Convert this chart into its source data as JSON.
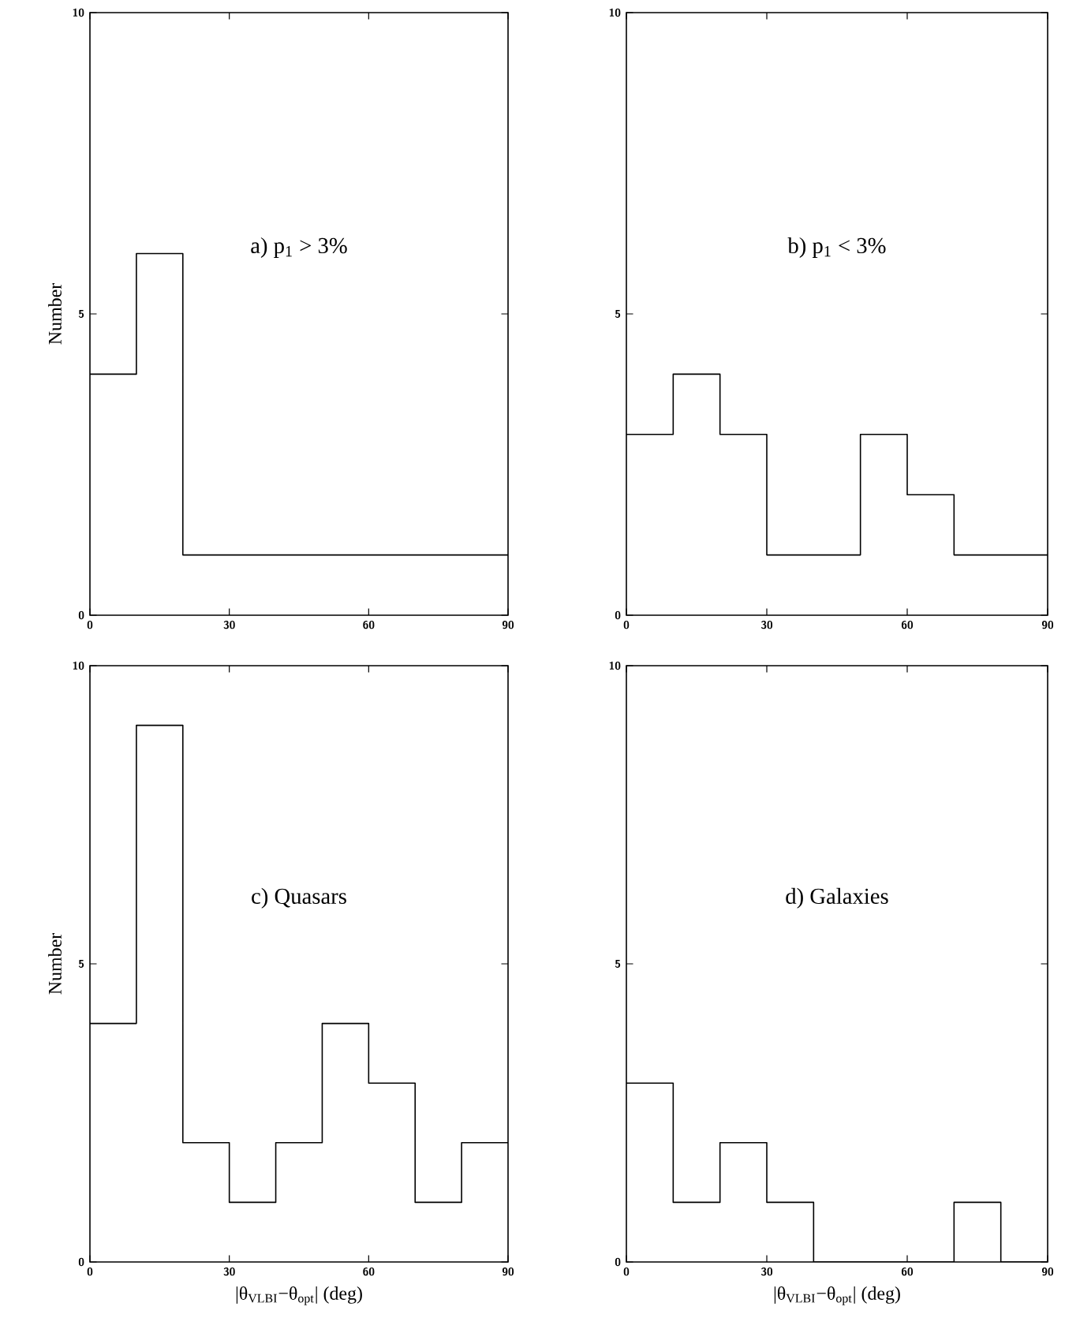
{
  "chart_data": [
    {
      "type": "histogram",
      "bins": [
        0,
        10,
        20,
        30,
        40,
        50,
        60,
        70,
        80,
        90
      ],
      "values": [
        4,
        6,
        1,
        1,
        1,
        1,
        1,
        1,
        1
      ],
      "color": "#000000",
      "xlim": [
        0,
        90
      ],
      "ylim": [
        0,
        10
      ],
      "xticks": [
        0,
        30,
        60,
        90
      ],
      "yticks": [
        0,
        5,
        10
      ],
      "ylabel": "Number",
      "annotations": [
        "a) p$_{1}$ > 3%"
      ]
    },
    {
      "type": "histogram",
      "bins": [
        0,
        10,
        20,
        30,
        40,
        50,
        60,
        70,
        80,
        90
      ],
      "values": [
        3,
        4,
        3,
        1,
        1,
        3,
        2,
        1,
        1
      ],
      "color": "#000000",
      "xlim": [
        0,
        90
      ],
      "ylim": [
        0,
        10
      ],
      "xticks": [
        0,
        30,
        60,
        90
      ],
      "yticks": [
        0,
        5,
        10
      ],
      "annotations": [
        "b) p$_{1}$ < 3%"
      ]
    },
    {
      "type": "histogram",
      "bins": [
        0,
        10,
        20,
        30,
        40,
        50,
        60,
        70,
        80,
        90
      ],
      "values": [
        4,
        9,
        2,
        1,
        2,
        4,
        3,
        1,
        2
      ],
      "color": "#000000",
      "xlim": [
        0,
        90
      ],
      "ylim": [
        0,
        10
      ],
      "xticks": [
        0,
        30,
        60,
        90
      ],
      "yticks": [
        0,
        5,
        10
      ],
      "ylabel": "Number",
      "xlabel": "|θ$_{VLBI}$−θ$_{opt}$| (deg)",
      "annotations": [
        "c) Quasars"
      ]
    },
    {
      "type": "histogram",
      "bins": [
        0,
        10,
        20,
        30,
        40,
        50,
        60,
        70,
        80,
        90
      ],
      "values": [
        3,
        1,
        2,
        1,
        0,
        0,
        0,
        1,
        0
      ],
      "color": "#000000",
      "xlim": [
        0,
        90
      ],
      "ylim": [
        0,
        10
      ],
      "xticks": [
        0,
        30,
        60,
        90
      ],
      "yticks": [
        0,
        5,
        10
      ],
      "xlabel": "|θ$_{VLBI}$−θ$_{opt}$| (deg)",
      "annotations": [
        "d) Galaxies"
      ]
    }
  ]
}
